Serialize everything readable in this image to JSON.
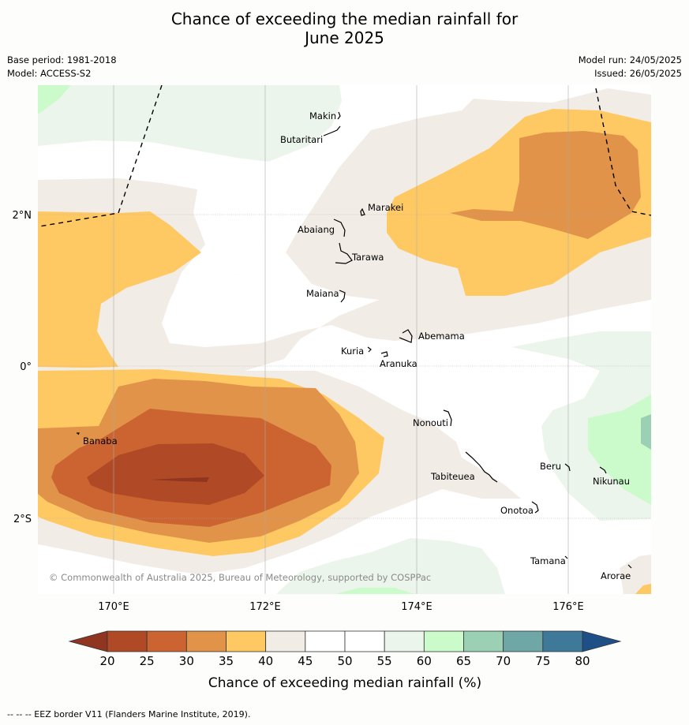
{
  "title": {
    "line1": "Chance of exceeding the median rainfall for",
    "line2": "June 2025"
  },
  "meta": {
    "base_period": "Base period: 1981-2018",
    "model": "Model: ACCESS-S2",
    "model_run": "Model run: 24/05/2025",
    "issued": "Issued: 26/05/2025"
  },
  "map": {
    "lat_labels": [
      "2°N",
      "0°",
      "2°S"
    ],
    "lon_labels": [
      "170°E",
      "172°E",
      "174°E",
      "176°E"
    ],
    "islands": [
      "Makin",
      "Butaritari",
      "Marakei",
      "Abaiang",
      "Tarawa",
      "Maiana",
      "Abemama",
      "Kuria",
      "Aranuka",
      "Nonouti",
      "Banaba",
      "Tabiteuea",
      "Beru",
      "Nikunau",
      "Onotoa",
      "Tamana",
      "Arorae"
    ],
    "copyright": "© Commonwealth of Australia 2025, Bureau of Meteorology, supported by COSPPac"
  },
  "legend": {
    "title": "Chance of exceeding median rainfall (%)",
    "ticks": [
      "20",
      "25",
      "30",
      "35",
      "40",
      "45",
      "50",
      "55",
      "60",
      "65",
      "70",
      "75",
      "80"
    ],
    "colors": [
      "#b04a26",
      "#cb6431",
      "#e1934a",
      "#fec963",
      "#f2ece6",
      "#ffffff",
      "#ffffff",
      "#ecf5ec",
      "#cbfacb",
      "#9bd0b4",
      "#6fa7a7",
      "#3f799a"
    ],
    "low_arrow_color": "#8f3520",
    "high_arrow_color": "#1e4f86"
  },
  "footer": "--  --  -- EEZ border V11 (Flanders Marine Institute, 2019)."
}
